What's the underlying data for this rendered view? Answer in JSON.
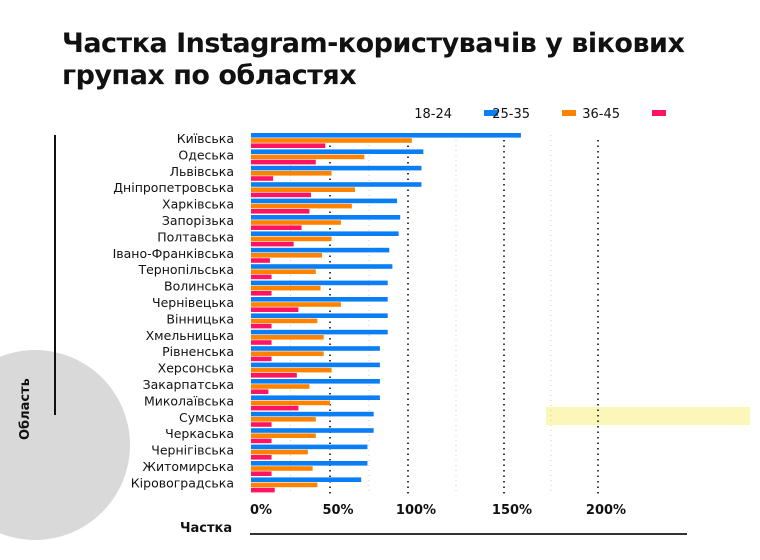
{
  "chart_data": {
    "type": "bar",
    "orientation": "horizontal",
    "title": "Частка Instagram-користувачів у вікових групах по областях",
    "xlabel": "Частка",
    "ylabel": "Область",
    "xticks": [
      "0%",
      "50%",
      "100%",
      "150%",
      "200%"
    ],
    "xlim": [
      0,
      200
    ],
    "grid": true,
    "legend_position": "top-right",
    "categories": [
      "Київська",
      "Одеська",
      "Львівська",
      "Дніпропетровська",
      "Харківська",
      "Запорізька",
      "Полтавська",
      "Івано-Франківська",
      "Тернопільська",
      "Волинська",
      "Чернівецька",
      "Вінницька",
      "Хмельницька",
      "Рівненська",
      "Херсонська",
      "Закарпатська",
      "Миколаївська",
      "Сумська",
      "Черкаська",
      "Чернігівська",
      "Житомирська",
      "Кіровоградська"
    ],
    "series": [
      {
        "name": "18-24",
        "color": "#0a7ef5",
        "values": [
          159,
          108,
          107,
          107,
          93,
          95,
          94,
          88,
          90,
          87,
          87,
          87,
          87,
          82,
          82,
          82,
          82,
          78,
          78,
          74,
          74,
          70
        ]
      },
      {
        "name": "25-35",
        "color": "#ff8300",
        "values": [
          102,
          72,
          51,
          66,
          64,
          57,
          51,
          45,
          41,
          44,
          57,
          42,
          46,
          46,
          51,
          37,
          50,
          41,
          41,
          36,
          39,
          42
        ]
      },
      {
        "name": "36-45",
        "color": "#ff1464",
        "values": [
          47,
          41,
          14,
          38,
          37,
          32,
          27,
          12,
          13,
          13,
          30,
          13,
          13,
          13,
          29,
          11,
          30,
          13,
          13,
          13,
          13,
          15
        ]
      }
    ]
  }
}
